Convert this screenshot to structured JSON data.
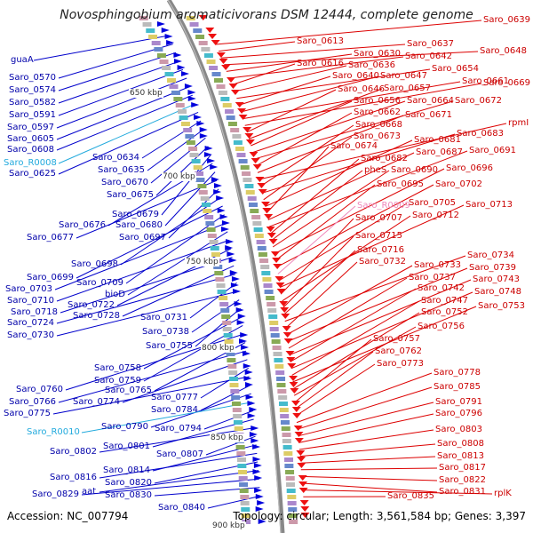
{
  "title": "Novosphingobium aromaticivorans DSM 12444, complete genome",
  "footer": {
    "accession": "Accession: NC_007794",
    "topology": "Topology: circular; Length: 3,561,584 bp; Genes: 3,397"
  },
  "scale_labels": [
    "650 kbp",
    "700 kbp",
    "750 kbp",
    "800 kbp",
    "850 kbp",
    "900 kbp"
  ],
  "colors": {
    "minus_strand": "#0000cc",
    "plus_strand": "#dd0000",
    "rna": "#22aadd",
    "pseudo": "#ee88bb"
  },
  "left_genes": [
    {
      "name": "guaA",
      "color": "blue"
    },
    {
      "name": "Saro_0570",
      "color": "blue"
    },
    {
      "name": "Saro_0574",
      "color": "blue"
    },
    {
      "name": "Saro_0582",
      "color": "blue"
    },
    {
      "name": "Saro_0591",
      "color": "blue"
    },
    {
      "name": "Saro_0597",
      "color": "blue"
    },
    {
      "name": "Saro_0605",
      "color": "blue"
    },
    {
      "name": "Saro_0608",
      "color": "blue"
    },
    {
      "name": "Saro_R0008",
      "color": "cyan"
    },
    {
      "name": "Saro_0625",
      "color": "blue"
    },
    {
      "name": "Saro_0634",
      "color": "blue"
    },
    {
      "name": "Saro_0635",
      "color": "blue"
    },
    {
      "name": "Saro_0670",
      "color": "blue"
    },
    {
      "name": "Saro_0675",
      "color": "blue"
    },
    {
      "name": "Saro_0679",
      "color": "blue"
    },
    {
      "name": "Saro_0676",
      "color": "blue"
    },
    {
      "name": "Saro_0680",
      "color": "blue"
    },
    {
      "name": "Saro_0677",
      "color": "blue"
    },
    {
      "name": "Saro_0697",
      "color": "blue"
    },
    {
      "name": "Saro_0698",
      "color": "blue"
    },
    {
      "name": "Saro_0699",
      "color": "blue"
    },
    {
      "name": "Saro_0709",
      "color": "blue"
    },
    {
      "name": "Saro_0703",
      "color": "blue"
    },
    {
      "name": "bioD",
      "color": "blue"
    },
    {
      "name": "Saro_0710",
      "color": "blue"
    },
    {
      "name": "Saro_0722",
      "color": "blue"
    },
    {
      "name": "Saro_0718",
      "color": "blue"
    },
    {
      "name": "Saro_0728",
      "color": "blue"
    },
    {
      "name": "Saro_0724",
      "color": "blue"
    },
    {
      "name": "Saro_0731",
      "color": "blue"
    },
    {
      "name": "Saro_0730",
      "color": "blue"
    },
    {
      "name": "Saro_0738",
      "color": "blue"
    },
    {
      "name": "Saro_0755",
      "color": "blue"
    },
    {
      "name": "Saro_0758",
      "color": "blue"
    },
    {
      "name": "Saro_0759",
      "color": "blue"
    },
    {
      "name": "Saro_0760",
      "color": "blue"
    },
    {
      "name": "Saro_0765",
      "color": "blue"
    },
    {
      "name": "Saro_0766",
      "color": "blue"
    },
    {
      "name": "Saro_0774",
      "color": "blue"
    },
    {
      "name": "Saro_0777",
      "color": "blue"
    },
    {
      "name": "Saro_0775",
      "color": "blue"
    },
    {
      "name": "Saro_0784",
      "color": "blue"
    },
    {
      "name": "Saro_0790",
      "color": "blue"
    },
    {
      "name": "Saro_R0010",
      "color": "cyan"
    },
    {
      "name": "Saro_0794",
      "color": "blue"
    },
    {
      "name": "Saro_0801",
      "color": "blue"
    },
    {
      "name": "Saro_0802",
      "color": "blue"
    },
    {
      "name": "Saro_0807",
      "color": "blue"
    },
    {
      "name": "Saro_0814",
      "color": "blue"
    },
    {
      "name": "Saro_0816",
      "color": "blue"
    },
    {
      "name": "Saro_0820",
      "color": "blue"
    },
    {
      "name": "aat",
      "color": "blue"
    },
    {
      "name": "Saro_0829",
      "color": "blue"
    },
    {
      "name": "Saro_0830",
      "color": "blue"
    },
    {
      "name": "Saro_0840",
      "color": "blue"
    }
  ],
  "right_genes": [
    {
      "name": "Saro_0639",
      "color": "red"
    },
    {
      "name": "Saro_0613",
      "color": "red"
    },
    {
      "name": "Saro_0637",
      "color": "red"
    },
    {
      "name": "Saro_0648",
      "color": "red"
    },
    {
      "name": "Saro_0630",
      "color": "red"
    },
    {
      "name": "Saro_0642",
      "color": "red"
    },
    {
      "name": "Saro_0616",
      "color": "red"
    },
    {
      "name": "Saro_0636",
      "color": "red"
    },
    {
      "name": "Saro_0654",
      "color": "red"
    },
    {
      "name": "Saro_0640",
      "color": "red"
    },
    {
      "name": "Saro_0647",
      "color": "red"
    },
    {
      "name": "Saro_0661",
      "color": "red"
    },
    {
      "name": "Saro_0669",
      "color": "red"
    },
    {
      "name": "Saro_0646",
      "color": "red"
    },
    {
      "name": "Saro_0657",
      "color": "red"
    },
    {
      "name": "Saro_0656",
      "color": "red"
    },
    {
      "name": "Saro_0664",
      "color": "red"
    },
    {
      "name": "Saro_0672",
      "color": "red"
    },
    {
      "name": "Saro_0662",
      "color": "red"
    },
    {
      "name": "Saro_0671",
      "color": "red"
    },
    {
      "name": "rpmI",
      "color": "red"
    },
    {
      "name": "Saro_0668",
      "color": "red"
    },
    {
      "name": "Saro_0683",
      "color": "red"
    },
    {
      "name": "Saro_0673",
      "color": "red"
    },
    {
      "name": "Saro_0681",
      "color": "red"
    },
    {
      "name": "Saro_0674",
      "color": "red"
    },
    {
      "name": "Saro_0687",
      "color": "red"
    },
    {
      "name": "Saro_0691",
      "color": "red"
    },
    {
      "name": "Saro_0682",
      "color": "red"
    },
    {
      "name": "pheS",
      "color": "red"
    },
    {
      "name": "Saro_0690",
      "color": "red"
    },
    {
      "name": "Saro_0696",
      "color": "red"
    },
    {
      "name": "Saro_0695",
      "color": "red"
    },
    {
      "name": "Saro_0702",
      "color": "red"
    },
    {
      "name": "Saro_R0009",
      "color": "pink"
    },
    {
      "name": "Saro_0705",
      "color": "red"
    },
    {
      "name": "Saro_0713",
      "color": "red"
    },
    {
      "name": "Saro_0707",
      "color": "red"
    },
    {
      "name": "Saro_0712",
      "color": "red"
    },
    {
      "name": "Saro_0715",
      "color": "red"
    },
    {
      "name": "Saro_0716",
      "color": "red"
    },
    {
      "name": "Saro_0734",
      "color": "red"
    },
    {
      "name": "Saro_0732",
      "color": "red"
    },
    {
      "name": "Saro_0733",
      "color": "red"
    },
    {
      "name": "Saro_0739",
      "color": "red"
    },
    {
      "name": "Saro_0737",
      "color": "red"
    },
    {
      "name": "Saro_0743",
      "color": "red"
    },
    {
      "name": "Saro_0742",
      "color": "red"
    },
    {
      "name": "Saro_0748",
      "color": "red"
    },
    {
      "name": "Saro_0747",
      "color": "red"
    },
    {
      "name": "Saro_0753",
      "color": "red"
    },
    {
      "name": "Saro_0752",
      "color": "red"
    },
    {
      "name": "Saro_0756",
      "color": "red"
    },
    {
      "name": "Saro_0757",
      "color": "red"
    },
    {
      "name": "Saro_0762",
      "color": "red"
    },
    {
      "name": "Saro_0773",
      "color": "red"
    },
    {
      "name": "Saro_0778",
      "color": "red"
    },
    {
      "name": "Saro_0785",
      "color": "red"
    },
    {
      "name": "Saro_0791",
      "color": "red"
    },
    {
      "name": "Saro_0796",
      "color": "red"
    },
    {
      "name": "Saro_0803",
      "color": "red"
    },
    {
      "name": "Saro_0808",
      "color": "red"
    },
    {
      "name": "Saro_0813",
      "color": "red"
    },
    {
      "name": "Saro_0817",
      "color": "red"
    },
    {
      "name": "Saro_0822",
      "color": "red"
    },
    {
      "name": "Saro_0831",
      "color": "red"
    },
    {
      "name": "rplK",
      "color": "red"
    },
    {
      "name": "Saro_0835",
      "color": "red"
    }
  ]
}
